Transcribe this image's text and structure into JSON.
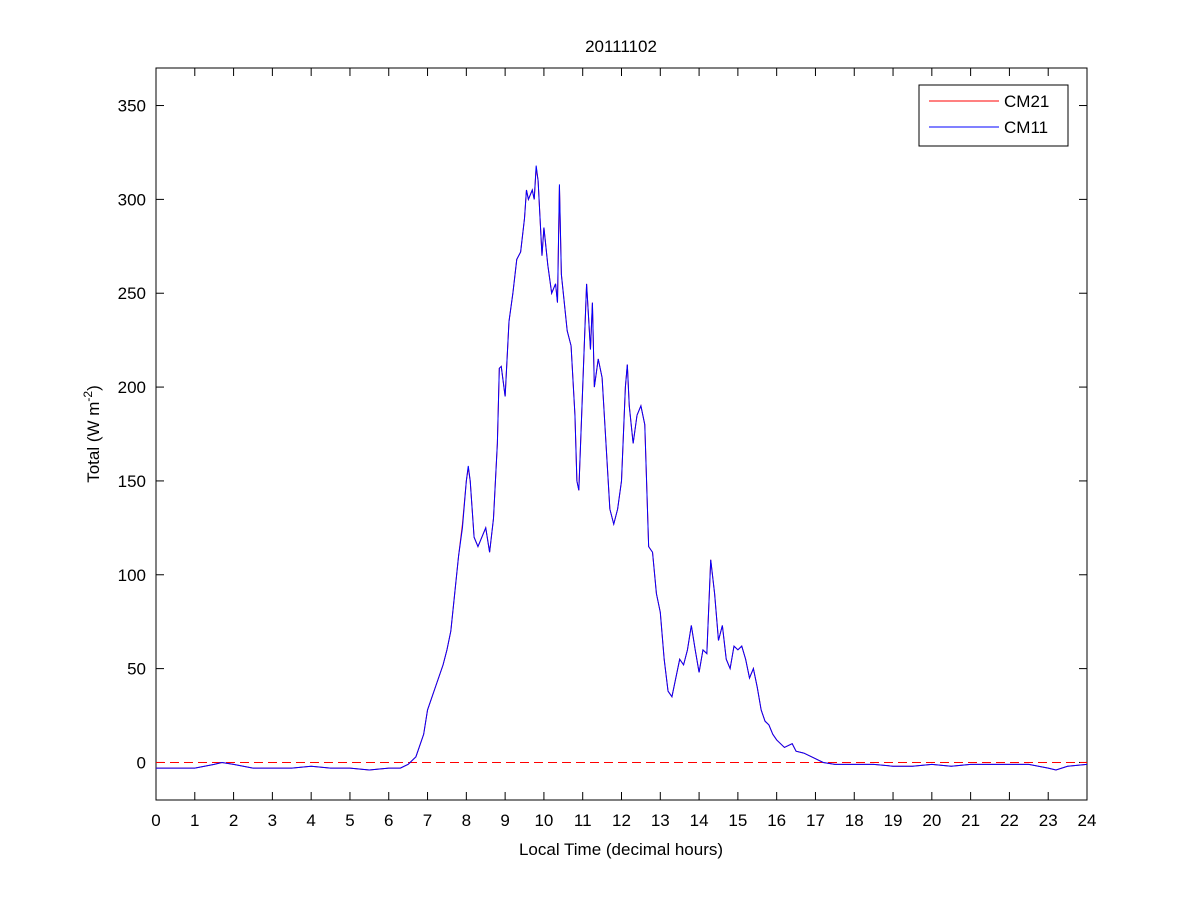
{
  "chart_data": {
    "type": "line",
    "title": "20111102",
    "xlabel": "Local Time (decimal hours)",
    "ylabel": {
      "text": "Total (W m",
      "sup": "-2",
      "end": ")"
    },
    "x": [
      0,
      0.5,
      1,
      1.5,
      1.7,
      2,
      2.5,
      3,
      3.5,
      4,
      4.5,
      5,
      5.5,
      6,
      6.3,
      6.5,
      6.7,
      6.9,
      7,
      7.2,
      7.4,
      7.5,
      7.6,
      7.7,
      7.8,
      7.9,
      8,
      8.05,
      8.1,
      8.2,
      8.3,
      8.4,
      8.5,
      8.6,
      8.7,
      8.8,
      8.85,
      8.9,
      9,
      9.1,
      9.2,
      9.3,
      9.4,
      9.5,
      9.55,
      9.6,
      9.7,
      9.75,
      9.8,
      9.85,
      9.9,
      9.95,
      10,
      10.1,
      10.2,
      10.3,
      10.35,
      10.4,
      10.45,
      10.5,
      10.6,
      10.7,
      10.8,
      10.85,
      10.9,
      11,
      11.1,
      11.2,
      11.25,
      11.3,
      11.4,
      11.5,
      11.6,
      11.7,
      11.8,
      11.9,
      12,
      12.1,
      12.15,
      12.2,
      12.3,
      12.4,
      12.5,
      12.6,
      12.7,
      12.8,
      12.9,
      13,
      13.1,
      13.2,
      13.3,
      13.4,
      13.5,
      13.6,
      13.7,
      13.8,
      13.9,
      14,
      14.1,
      14.2,
      14.3,
      14.4,
      14.5,
      14.6,
      14.7,
      14.8,
      14.9,
      15,
      15.1,
      15.2,
      15.3,
      15.4,
      15.5,
      15.6,
      15.7,
      15.8,
      15.9,
      16,
      16.2,
      16.4,
      16.5,
      16.7,
      16.9,
      17,
      17.2,
      17.5,
      18,
      18.5,
      19,
      19.5,
      20,
      20.5,
      21,
      21.5,
      22,
      22.5,
      23,
      23.2,
      23.5,
      24
    ],
    "series": [
      {
        "name": "CM21",
        "color": "#ff0000",
        "values": [
          -3,
          -3,
          -3,
          -1,
          0,
          -1,
          -3,
          -3,
          -3,
          -2,
          -3,
          -3,
          -4,
          -3,
          -3,
          -1,
          3,
          15,
          28,
          40,
          52,
          60,
          70,
          90,
          110,
          127,
          150,
          157,
          150,
          120,
          115,
          120,
          125,
          112,
          130,
          170,
          210,
          211,
          195,
          235,
          250,
          268,
          272,
          290,
          305,
          300,
          305,
          300,
          317,
          310,
          290,
          270,
          285,
          265,
          250,
          255,
          245,
          307,
          260,
          250,
          230,
          222,
          185,
          150,
          145,
          200,
          255,
          220,
          245,
          200,
          215,
          205,
          170,
          135,
          127,
          135,
          150,
          200,
          212,
          190,
          170,
          185,
          190,
          180,
          115,
          112,
          90,
          80,
          55,
          38,
          35,
          45,
          55,
          52,
          60,
          73,
          60,
          48,
          60,
          58,
          108,
          90,
          65,
          73,
          55,
          50,
          62,
          60,
          62,
          55,
          45,
          50,
          40,
          28,
          22,
          20,
          15,
          12,
          8,
          10,
          6,
          5,
          3,
          2,
          0,
          -1,
          -1,
          -1,
          -2,
          -2,
          -1,
          -2,
          -1,
          -1,
          -1,
          -1,
          -3,
          -4,
          -2,
          -1
        ]
      },
      {
        "name": "CM11",
        "color": "#0000ff",
        "values": [
          -3,
          -3,
          -3,
          -1,
          0,
          -1,
          -3,
          -3,
          -3,
          -2,
          -3,
          -3,
          -4,
          -3,
          -3,
          -1,
          3,
          15,
          28,
          40,
          52,
          60,
          70,
          90,
          110,
          125,
          150,
          158,
          150,
          120,
          115,
          120,
          125,
          112,
          130,
          170,
          210,
          211,
          195,
          235,
          250,
          268,
          272,
          290,
          305,
          300,
          305,
          300,
          318,
          310,
          290,
          270,
          285,
          265,
          250,
          255,
          245,
          308,
          260,
          250,
          230,
          222,
          185,
          150,
          145,
          200,
          255,
          220,
          245,
          200,
          215,
          205,
          170,
          135,
          127,
          135,
          150,
          200,
          212,
          190,
          170,
          185,
          190,
          180,
          115,
          112,
          90,
          80,
          55,
          38,
          35,
          45,
          55,
          52,
          60,
          73,
          60,
          48,
          60,
          58,
          108,
          90,
          65,
          73,
          55,
          50,
          62,
          60,
          62,
          55,
          45,
          50,
          40,
          28,
          22,
          20,
          15,
          12,
          8,
          10,
          6,
          5,
          3,
          2,
          0,
          -1,
          -1,
          -1,
          -2,
          -2,
          -1,
          -2,
          -1,
          -1,
          -1,
          -1,
          -3,
          -4,
          -2,
          -1
        ]
      }
    ],
    "xlim": [
      0,
      24
    ],
    "xticks": [
      0,
      1,
      2,
      3,
      4,
      5,
      6,
      7,
      8,
      9,
      10,
      11,
      12,
      13,
      14,
      15,
      16,
      17,
      18,
      19,
      20,
      21,
      22,
      23,
      24
    ],
    "ylim": [
      -20,
      370
    ],
    "yticks": [
      0,
      50,
      100,
      150,
      200,
      250,
      300,
      350
    ],
    "reference_line": {
      "value": 0,
      "color": "#ff0000",
      "style": "dashed"
    },
    "legend": "upper right",
    "grid": false
  }
}
